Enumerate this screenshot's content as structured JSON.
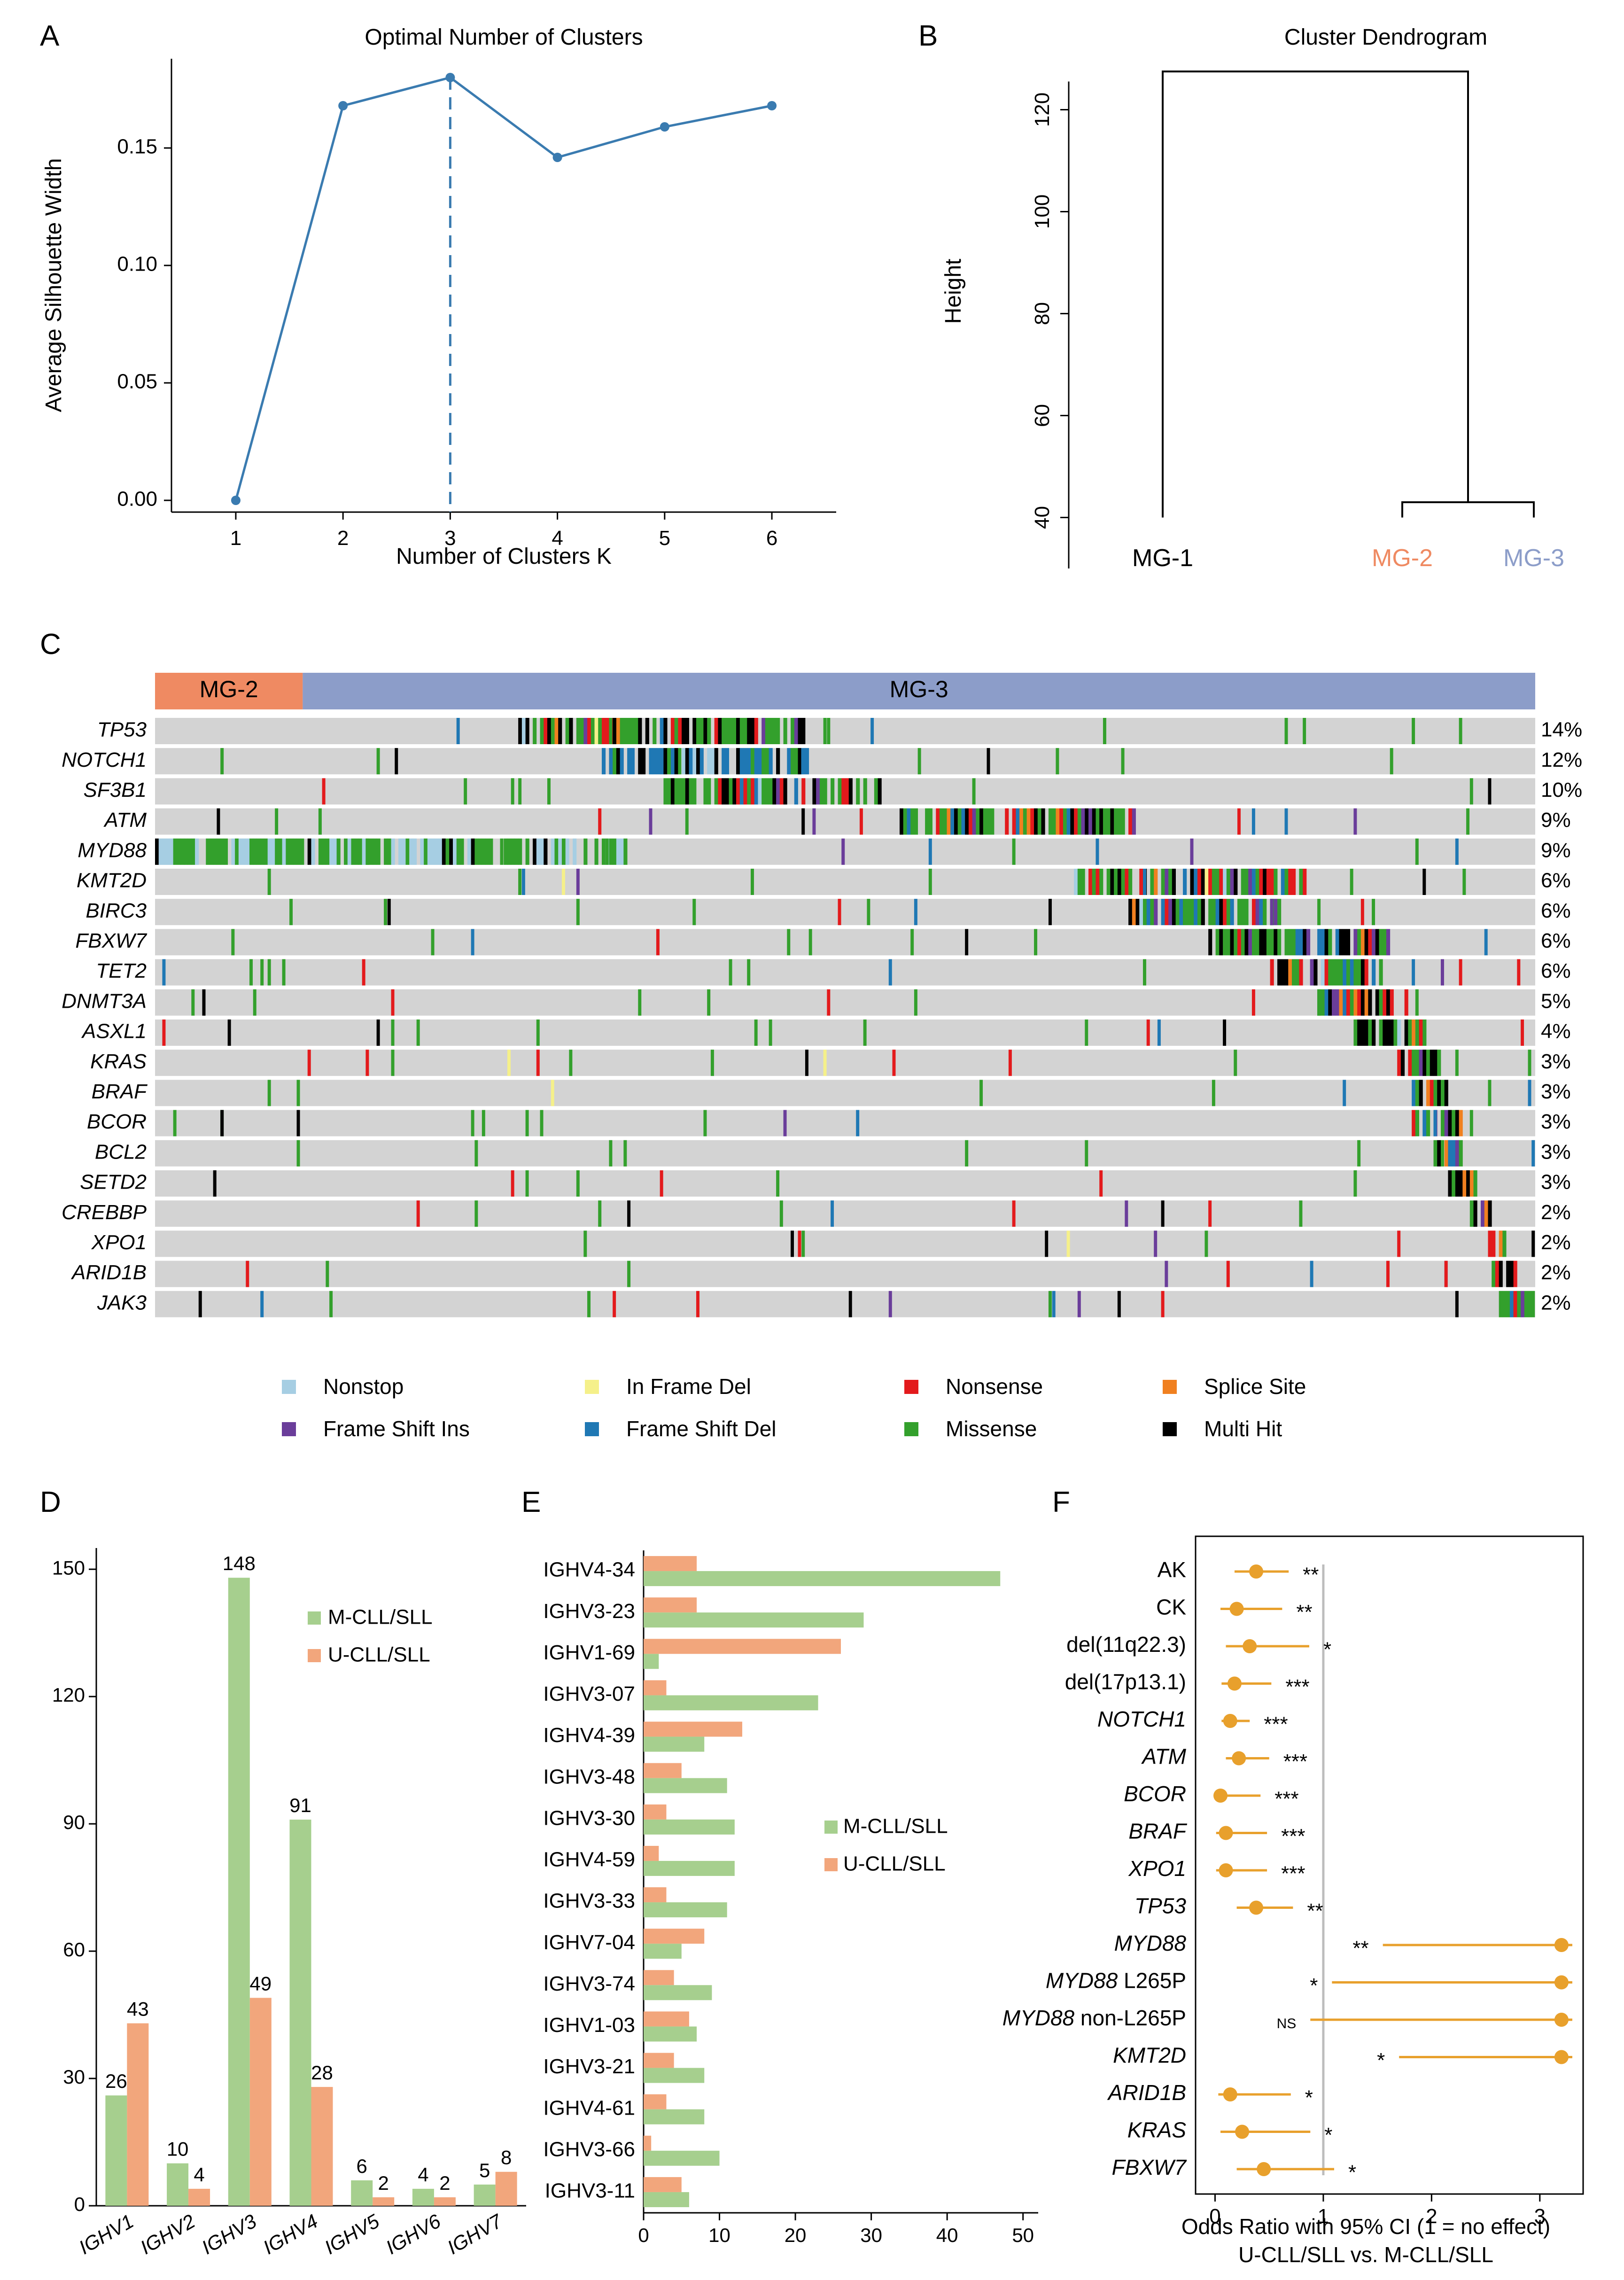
{
  "panel_labels": {
    "a": "A",
    "b": "B",
    "c": "C",
    "d": "D",
    "e": "E",
    "f": "F"
  },
  "colors": {
    "line": "#3a7bb0",
    "mg2": "#ef8a62",
    "mg3": "#8c9dc9",
    "grey": "#d3d3d3",
    "green_bar": "#a6cf8e",
    "orange_bar": "#f2a67c",
    "forest": "#e8a02c",
    "Nonstop": "#a6cee3",
    "In Frame Del": "#f5f08a",
    "Nonsense": "#e31a1c",
    "Splice Site": "#f08020",
    "Frame Shift Ins": "#6a3d9a",
    "Frame Shift Del": "#1f78b4",
    "Missense": "#33a02c",
    "Multi Hit": "#000000"
  },
  "chart_data": [
    {
      "id": "A",
      "type": "line",
      "title": "Optimal Number of Clusters",
      "xlabel": "Number of Clusters K",
      "ylabel": "Average Silhouette Width",
      "x": [
        1,
        2,
        3,
        4,
        5,
        6
      ],
      "y": [
        0.0,
        0.168,
        0.18,
        0.146,
        0.159,
        0.168
      ],
      "xlim": [
        0.4,
        6.6
      ],
      "ylim": [
        -0.005,
        0.188
      ],
      "yticks": [
        "0.00",
        "0.05",
        "0.10",
        "0.15"
      ],
      "xticks": [
        "1",
        "2",
        "3",
        "4",
        "5",
        "6"
      ],
      "vline_x": 3
    },
    {
      "id": "B",
      "type": "dendrogram",
      "title": "Cluster Dendrogram",
      "ylabel": "Height",
      "ylim": [
        30,
        130
      ],
      "yticks": [
        "40",
        "60",
        "80",
        "100",
        "120"
      ],
      "leaves": [
        {
          "label": "MG-1",
          "color": "#000000"
        },
        {
          "label": "MG-2",
          "color": "#ef8a62"
        },
        {
          "label": "MG-3",
          "color": "#8c9dc9"
        }
      ],
      "merges": [
        {
          "left": "MG-2",
          "right": "MG-3",
          "height": 43
        },
        {
          "left": "MG-1",
          "right": "MG-2+MG-3",
          "height": 127.5
        }
      ],
      "leaf_heights": [
        40,
        40,
        40
      ]
    },
    {
      "id": "C",
      "type": "heatmap",
      "subtitle": "oncoplot",
      "groups": [
        {
          "label": "MG-2",
          "share": 0.107
        },
        {
          "label": "MG-3",
          "share": 0.893
        }
      ],
      "genes": [
        "TP53",
        "NOTCH1",
        "SF3B1",
        "ATM",
        "MYD88",
        "KMT2D",
        "BIRC3",
        "FBXW7",
        "TET2",
        "DNMT3A",
        "ASXL1",
        "KRAS",
        "BRAF",
        "BCOR",
        "BCL2",
        "SETD2",
        "CREBBP",
        "XPO1",
        "ARID1B",
        "JAK3"
      ],
      "percents": [
        "14%",
        "12%",
        "10%",
        "9%",
        "9%",
        "6%",
        "6%",
        "6%",
        "6%",
        "5%",
        "4%",
        "3%",
        "3%",
        "3%",
        "3%",
        "3%",
        "2%",
        "2%",
        "2%",
        "2%"
      ],
      "mutation_types": [
        "Nonstop",
        "In Frame Del",
        "Nonsense",
        "Splice Site",
        "Frame Shift Ins",
        "Frame Shift Del",
        "Missense",
        "Multi Hit"
      ],
      "legend": [
        [
          "Nonstop",
          "In Frame Del",
          "Nonsense",
          "Splice Site"
        ],
        [
          "Frame Shift Ins",
          "Frame Shift Del",
          "Missense",
          "Multi Hit"
        ]
      ]
    },
    {
      "id": "D",
      "type": "bar",
      "categories": [
        "IGHV1",
        "IGHV2",
        "IGHV3",
        "IGHV4",
        "IGHV5",
        "IGHV6",
        "IGHV7"
      ],
      "series": [
        {
          "name": "M-CLL/SLL",
          "values": [
            26,
            10,
            148,
            91,
            6,
            4,
            5
          ]
        },
        {
          "name": "U-CLL/SLL",
          "values": [
            43,
            4,
            49,
            28,
            2,
            2,
            8
          ]
        }
      ],
      "ylim": [
        0,
        155
      ],
      "yticks": [
        "0",
        "30",
        "60",
        "90",
        "120",
        "150"
      ]
    },
    {
      "id": "E",
      "type": "bar",
      "orientation": "horizontal",
      "categories": [
        "IGHV4-34",
        "IGHV3-23",
        "IGHV1-69",
        "IGHV3-07",
        "IGHV4-39",
        "IGHV3-48",
        "IGHV3-30",
        "IGHV4-59",
        "IGHV3-33",
        "IGHV7-04",
        "IGHV3-74",
        "IGHV1-03",
        "IGHV3-21",
        "IGHV4-61",
        "IGHV3-66",
        "IGHV3-11"
      ],
      "series": [
        {
          "name": "M-CLL/SLL",
          "values": [
            47,
            29,
            2,
            23,
            8,
            11,
            12,
            12,
            11,
            5,
            9,
            7,
            8,
            8,
            10,
            6
          ]
        },
        {
          "name": "U-CLL/SLL",
          "values": [
            7,
            7,
            26,
            3,
            13,
            5,
            3,
            2,
            3,
            8,
            4,
            6,
            4,
            3,
            1,
            5
          ]
        }
      ],
      "xlim": [
        0,
        52
      ],
      "xticks": [
        "0",
        "10",
        "20",
        "30",
        "40",
        "50"
      ]
    },
    {
      "id": "F",
      "type": "scatter",
      "subtitle": "forest plot",
      "xlabel": "Odds Ratio with 95% CI (1 = no effect)",
      "xlabel2": "U-CLL/SLL vs. M-CLL/SLL",
      "xlim": [
        -0.18,
        3.4
      ],
      "xticks": [
        "0",
        "1",
        "2",
        "3"
      ],
      "rows": [
        {
          "pre": "AK",
          "gene": "",
          "post": "",
          "or": 0.38,
          "lo": 0.18,
          "hi": 0.68,
          "sig": "**"
        },
        {
          "pre": "CK",
          "gene": "",
          "post": "",
          "or": 0.2,
          "lo": 0.05,
          "hi": 0.62,
          "sig": "**"
        },
        {
          "pre": "del(11q22.3)",
          "gene": "",
          "post": "",
          "or": 0.32,
          "lo": 0.1,
          "hi": 0.87,
          "sig": "*"
        },
        {
          "pre": "del(17p13.1)",
          "gene": "",
          "post": "",
          "or": 0.18,
          "lo": 0.06,
          "hi": 0.52,
          "sig": "***"
        },
        {
          "pre": "",
          "gene": "NOTCH1",
          "post": "",
          "or": 0.14,
          "lo": 0.06,
          "hi": 0.32,
          "sig": "***"
        },
        {
          "pre": "",
          "gene": "ATM",
          "post": "",
          "or": 0.22,
          "lo": 0.1,
          "hi": 0.5,
          "sig": "***"
        },
        {
          "pre": "",
          "gene": "BCOR",
          "post": "",
          "or": 0.05,
          "lo": 0.0,
          "hi": 0.42,
          "sig": "***"
        },
        {
          "pre": "",
          "gene": "BRAF",
          "post": "",
          "or": 0.1,
          "lo": 0.01,
          "hi": 0.48,
          "sig": "***"
        },
        {
          "pre": "",
          "gene": "XPO1",
          "post": "",
          "or": 0.1,
          "lo": 0.01,
          "hi": 0.48,
          "sig": "***"
        },
        {
          "pre": "",
          "gene": "TP53",
          "post": "",
          "or": 0.38,
          "lo": 0.2,
          "hi": 0.72,
          "sig": "**"
        },
        {
          "pre": "",
          "gene": "MYD88",
          "post": "",
          "or": 3.2,
          "lo": 1.55,
          "hi": 3.3,
          "sig": "**"
        },
        {
          "pre": "",
          "gene": "MYD88",
          "post": " L265P",
          "or": 3.2,
          "lo": 1.08,
          "hi": 3.3,
          "sig": "*"
        },
        {
          "pre": "",
          "gene": "MYD88",
          "post": " non-L265P",
          "or": 3.2,
          "lo": 0.88,
          "hi": 3.3,
          "sig": "NS"
        },
        {
          "pre": "",
          "gene": "KMT2D",
          "post": "",
          "or": 3.2,
          "lo": 1.7,
          "hi": 3.3,
          "sig": "*"
        },
        {
          "pre": "",
          "gene": "ARID1B",
          "post": "",
          "or": 0.14,
          "lo": 0.03,
          "hi": 0.7,
          "sig": "*"
        },
        {
          "pre": "",
          "gene": "KRAS",
          "post": "",
          "or": 0.25,
          "lo": 0.05,
          "hi": 0.88,
          "sig": "*"
        },
        {
          "pre": "",
          "gene": "FBXW7",
          "post": "",
          "or": 0.45,
          "lo": 0.2,
          "hi": 1.1,
          "sig": "*"
        }
      ]
    }
  ]
}
